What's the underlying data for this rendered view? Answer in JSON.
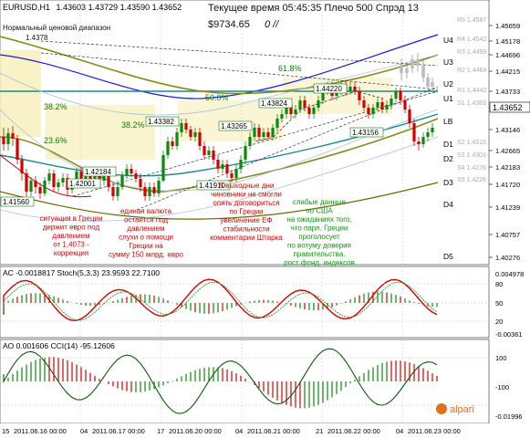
{
  "header": {
    "symbol": "EURUSD,H1",
    "ohlc": "1.43603 1.43729 1.43590 1.43652",
    "server_time": "Текущее время 05:45:35 Плечо 500 Спрэд 13",
    "balance": "$9734.65",
    "profit": "0",
    "channel_label": "Нормальный ценовой диапазон",
    "channel_value": "1.4378"
  },
  "price_scale": [
    "1.45659",
    "1.45178",
    "1.44696",
    "1.44215",
    "1.43733",
    "1.43652",
    "1.43146",
    "1.42665",
    "1.42183",
    "1.41720",
    "1.41239",
    "1.40757",
    "1.40276"
  ],
  "current_price": "1.43652",
  "levels": {
    "right": [
      "R5 1.4587",
      "R4 1.4542",
      "R3 1.4499",
      "R2 1.4464",
      "R1 1.4442",
      "S1 1.4383",
      "S2 1.4315",
      "S3 1.4303",
      "S4 1.4276",
      "S5 1.4226"
    ],
    "bands": [
      "U4",
      "U3",
      "U2",
      "U1",
      "LB",
      "D1",
      "D2",
      "D3",
      "D4",
      "D5"
    ],
    "fibo": [
      "61.8%",
      "50.0%",
      "38.2%",
      "38.2%",
      "23.6%"
    ]
  },
  "price_boxes": [
    "1.43382",
    "1.43265",
    "1.43824",
    "1.44220",
    "1.43156",
    "1.41910",
    "1.42184",
    "1.42001",
    "1.41560"
  ],
  "annotations": {
    "red_1": [
      "ситуация в Греции",
      "держит евро под",
      "давлением",
      "от 1,4073 -",
      "коррекция"
    ],
    "red_2": [
      "единая валюта",
      "остается под",
      "давлением",
      "слухи о помощи",
      "Греции на",
      "сумму 150 млрд. евро"
    ],
    "red_3": [
      "В выходные дни",
      "чиновники не смогли",
      "опять  договориться",
      "по Греции",
      "увеличение ЕФ",
      "стабильности",
      "комментарии Штарка"
    ],
    "green_1": [
      "слабые данные",
      "по США",
      "на ожиданиях того,",
      "что парл. Греции",
      "проголосует",
      "по вотуму доверия",
      "правительства.",
      "рост фонд. индексов"
    ]
  },
  "ac_panel": {
    "label": "AC -0.0018817  Stoch(5,3,3) 23.9593 22.7100",
    "scale": [
      "0.004978",
      "80",
      "50",
      "20",
      "-0.00361"
    ]
  },
  "ao_panel": {
    "label": "AO 0.001606  CCI(14) -95.12606",
    "scale": [
      "100",
      "-100",
      "-0.01996"
    ],
    "watermark": "alpari"
  },
  "time_axis": [
    "15",
    "2011.06.16 00:00",
    "04",
    "2011.06.17 00:00",
    "17",
    "2011.06.20 00:00",
    "04",
    "2011.06.21 00:00",
    "21",
    "2011.06.22 00:00",
    "04",
    "2011.06.23 00:00"
  ],
  "colors": {
    "bull": "#0a8a0a",
    "bear": "#d40000",
    "ma_blue": "#1a1adc",
    "ma_teal": "#1a8a8a",
    "olive": "#8a8a1a",
    "red_text": "#e00000",
    "green_text": "#0a9a0a"
  }
}
